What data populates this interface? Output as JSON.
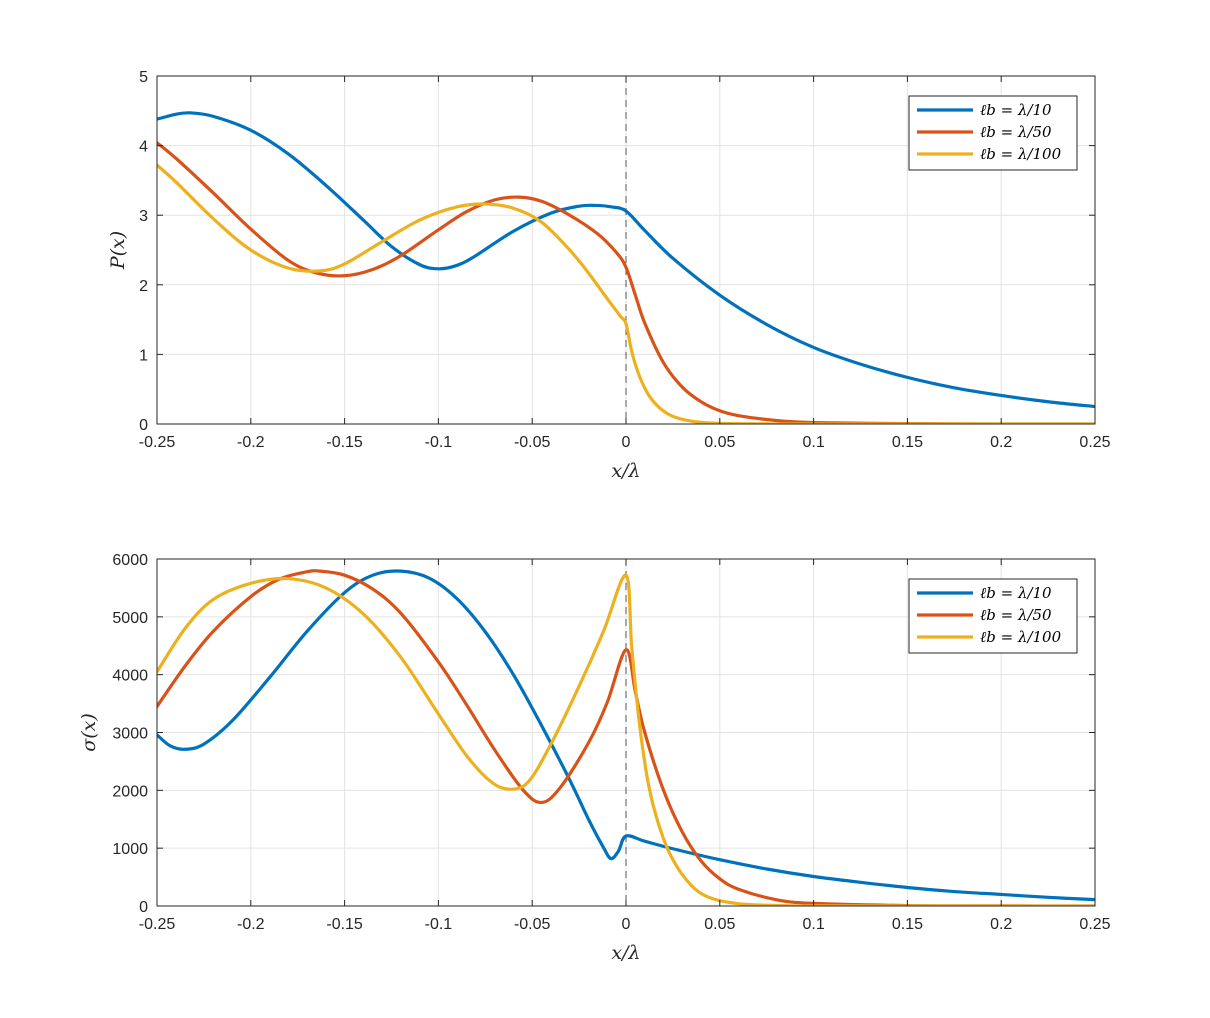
{
  "colors": {
    "series1": "#0072BD",
    "series2": "#D95319",
    "series3": "#EDB120"
  },
  "chart_data": [
    {
      "type": "line",
      "title": "",
      "xlabel": "x/λ",
      "ylabel": "P(x)",
      "xlim": [
        -0.25,
        0.25
      ],
      "ylim": [
        0,
        5
      ],
      "xticks": [
        "-0.25",
        "-0.2",
        "-0.15",
        "-0.1",
        "-0.05",
        "0",
        "0.05",
        "0.1",
        "0.15",
        "0.2",
        "0.25"
      ],
      "yticks": [
        "0",
        "1",
        "2",
        "3",
        "4",
        "5"
      ],
      "grid": true,
      "legend_position": "top-right",
      "vline_x": 0,
      "series": [
        {
          "name": "ℓb = λ/10",
          "x": [
            -0.25,
            -0.24,
            -0.232,
            -0.22,
            -0.2,
            -0.18,
            -0.16,
            -0.14,
            -0.125,
            -0.11,
            -0.1,
            -0.09,
            -0.08,
            -0.06,
            -0.04,
            -0.025,
            -0.016,
            -0.008,
            0,
            0.01,
            0.025,
            0.05,
            0.075,
            0.1,
            0.125,
            0.15,
            0.175,
            0.2,
            0.225,
            0.25
          ],
          "values": [
            4.38,
            4.45,
            4.47,
            4.42,
            4.22,
            3.88,
            3.43,
            2.93,
            2.55,
            2.29,
            2.23,
            2.28,
            2.42,
            2.77,
            3.03,
            3.13,
            3.14,
            3.12,
            3.06,
            2.78,
            2.38,
            1.85,
            1.43,
            1.1,
            0.86,
            0.67,
            0.52,
            0.41,
            0.32,
            0.25
          ]
        },
        {
          "name": "ℓb = λ/50",
          "x": [
            -0.25,
            -0.24,
            -0.22,
            -0.2,
            -0.18,
            -0.165,
            -0.15,
            -0.135,
            -0.12,
            -0.1,
            -0.085,
            -0.07,
            -0.057,
            -0.045,
            -0.03,
            -0.015,
            -0.005,
            0,
            0.005,
            0.01,
            0.02,
            0.03,
            0.04,
            0.05,
            0.06,
            0.08,
            0.1,
            0.15,
            0.2,
            0.25
          ],
          "values": [
            4.04,
            3.82,
            3.32,
            2.8,
            2.35,
            2.17,
            2.13,
            2.22,
            2.42,
            2.79,
            3.05,
            3.22,
            3.26,
            3.2,
            3.0,
            2.73,
            2.46,
            2.25,
            1.85,
            1.45,
            0.88,
            0.53,
            0.32,
            0.19,
            0.12,
            0.05,
            0.02,
            0.005,
            0.001,
            0.0
          ]
        },
        {
          "name": "ℓb = λ/100",
          "x": [
            -0.25,
            -0.24,
            -0.22,
            -0.2,
            -0.18,
            -0.163,
            -0.15,
            -0.13,
            -0.11,
            -0.09,
            -0.075,
            -0.06,
            -0.045,
            -0.03,
            -0.02,
            -0.01,
            -0.003,
            0,
            0.003,
            0.007,
            0.012,
            0.018,
            0.025,
            0.035,
            0.045,
            0.06,
            0.08,
            0.1,
            0.15,
            0.25
          ],
          "values": [
            3.72,
            3.48,
            2.95,
            2.5,
            2.24,
            2.2,
            2.3,
            2.62,
            2.93,
            3.12,
            3.16,
            3.1,
            2.9,
            2.5,
            2.17,
            1.8,
            1.55,
            1.44,
            1.05,
            0.7,
            0.42,
            0.23,
            0.11,
            0.04,
            0.015,
            0.004,
            0.001,
            0.0,
            0.0,
            0.0
          ]
        }
      ]
    },
    {
      "type": "line",
      "title": "",
      "xlabel": "x/λ",
      "ylabel": "σ(x)",
      "xlim": [
        -0.25,
        0.25
      ],
      "ylim": [
        0,
        6000
      ],
      "xticks": [
        "-0.25",
        "-0.2",
        "-0.15",
        "-0.1",
        "-0.05",
        "0",
        "0.05",
        "0.1",
        "0.15",
        "0.2",
        "0.25"
      ],
      "yticks": [
        "0",
        "1000",
        "2000",
        "3000",
        "4000",
        "5000",
        "6000"
      ],
      "grid": true,
      "legend_position": "top-right",
      "vline_x": 0,
      "series": [
        {
          "name": "ℓb = λ/10",
          "x": [
            -0.25,
            -0.243,
            -0.235,
            -0.225,
            -0.21,
            -0.19,
            -0.17,
            -0.15,
            -0.135,
            -0.12,
            -0.105,
            -0.09,
            -0.075,
            -0.06,
            -0.045,
            -0.03,
            -0.02,
            -0.012,
            -0.008,
            -0.004,
            0,
            0.01,
            0.025,
            0.05,
            0.075,
            0.1,
            0.125,
            0.15,
            0.175,
            0.2,
            0.225,
            0.25
          ],
          "values": [
            2960,
            2770,
            2710,
            2800,
            3200,
            3950,
            4750,
            5420,
            5720,
            5790,
            5670,
            5310,
            4740,
            4000,
            3120,
            2180,
            1500,
            1010,
            820,
            950,
            1210,
            1120,
            990,
            800,
            640,
            510,
            410,
            320,
            250,
            200,
            150,
            110
          ]
        },
        {
          "name": "ℓb = λ/50",
          "x": [
            -0.25,
            -0.235,
            -0.22,
            -0.2,
            -0.185,
            -0.17,
            -0.163,
            -0.15,
            -0.135,
            -0.12,
            -0.1,
            -0.085,
            -0.07,
            -0.055,
            -0.045,
            -0.035,
            -0.02,
            -0.01,
            0,
            0.005,
            0.01,
            0.02,
            0.03,
            0.04,
            0.05,
            0.06,
            0.08,
            0.1,
            0.15,
            0.2,
            0.25
          ],
          "values": [
            3450,
            4150,
            4750,
            5350,
            5650,
            5780,
            5790,
            5720,
            5480,
            5060,
            4220,
            3480,
            2700,
            2010,
            1790,
            2050,
            2820,
            3520,
            4430,
            3700,
            3000,
            2000,
            1280,
            780,
            470,
            290,
            110,
            45,
            8,
            2,
            0
          ]
        },
        {
          "name": "ℓb = λ/100",
          "x": [
            -0.25,
            -0.235,
            -0.22,
            -0.2,
            -0.18,
            -0.16,
            -0.14,
            -0.12,
            -0.1,
            -0.085,
            -0.072,
            -0.062,
            -0.052,
            -0.04,
            -0.025,
            -0.012,
            0,
            0.003,
            0.007,
            0.012,
            0.018,
            0.025,
            0.035,
            0.045,
            0.06,
            0.08,
            0.1,
            0.15,
            0.25
          ],
          "values": [
            4050,
            4800,
            5300,
            5580,
            5660,
            5500,
            5050,
            4300,
            3320,
            2600,
            2150,
            2020,
            2150,
            2800,
            3800,
            4750,
            5720,
            4500,
            3200,
            2100,
            1350,
            800,
            350,
            140,
            40,
            10,
            2,
            0,
            0
          ]
        }
      ]
    }
  ]
}
